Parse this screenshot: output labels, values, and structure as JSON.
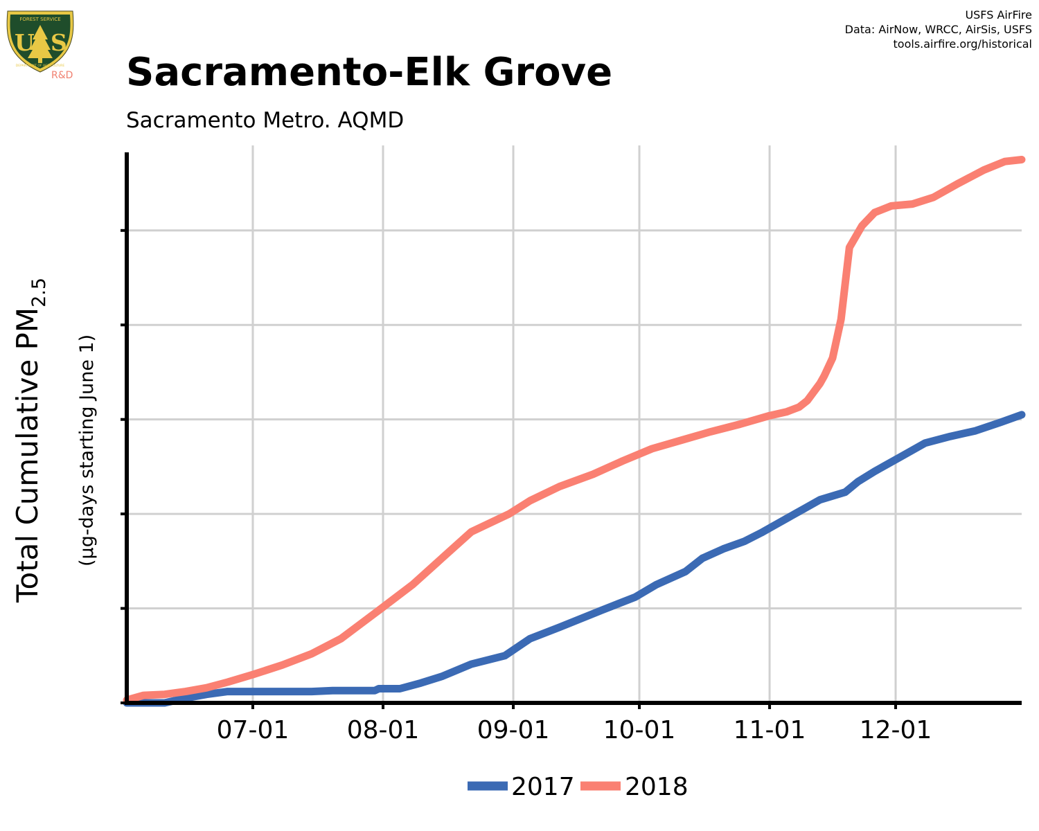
{
  "header": {
    "title": "Sacramento-Elk Grove",
    "subtitle": "Sacramento Metro. AQMD",
    "credits": [
      "USFS AirFire",
      "Data: AirNow, WRCC, AirSis, USFS",
      "tools.airfire.org/historical"
    ]
  },
  "logo": {
    "top_text": "FOREST SERVICE",
    "letters": "US",
    "bottom_text": "DEPARTMENT OF AGRICULTURE",
    "rd_text": "R&D",
    "colors": {
      "field": "#1f4d2b",
      "border": "#e8c845",
      "rd": "#f08070"
    }
  },
  "colors": {
    "s2017": "#3b6ab4",
    "s2018": "#fa8072",
    "grid": "#d0d0d0",
    "axis": "#000000"
  },
  "chart_data": {
    "type": "line",
    "title": "Sacramento-Elk Grove",
    "subtitle": "Sacramento Metro. AQMD",
    "ylabel_main": "Total Cumulative PM",
    "ylabel_sub": "2.5",
    "ylabel_units": "(µg-days starting June 1)",
    "xticks": [
      "07-01",
      "08-01",
      "09-01",
      "10-01",
      "11-01",
      "12-01"
    ],
    "xlim": [
      "06-01",
      "12-31"
    ],
    "ylim": [
      0,
      5.9
    ],
    "y_gridlines": [
      1,
      2,
      3,
      4,
      5
    ],
    "y_ticklabels_shown": false,
    "legend_position": "bottom-center",
    "series": [
      {
        "name": "2017",
        "color": "#3b6ab4",
        "points": [
          [
            "06-01",
            0.0
          ],
          [
            "06-10",
            0.0
          ],
          [
            "06-15",
            0.05
          ],
          [
            "06-20",
            0.09
          ],
          [
            "06-25",
            0.12
          ],
          [
            "07-15",
            0.12
          ],
          [
            "07-20",
            0.13
          ],
          [
            "07-30",
            0.13
          ],
          [
            "07-31",
            0.15
          ],
          [
            "08-05",
            0.15
          ],
          [
            "08-10",
            0.21
          ],
          [
            "08-15",
            0.28
          ],
          [
            "08-22",
            0.41
          ],
          [
            "08-30",
            0.5
          ],
          [
            "09-05",
            0.68
          ],
          [
            "09-12",
            0.8
          ],
          [
            "09-22",
            0.98
          ],
          [
            "09-30",
            1.12
          ],
          [
            "10-05",
            1.25
          ],
          [
            "10-12",
            1.39
          ],
          [
            "10-16",
            1.53
          ],
          [
            "10-21",
            1.63
          ],
          [
            "10-26",
            1.71
          ],
          [
            "10-30",
            1.8
          ],
          [
            "11-05",
            1.95
          ],
          [
            "11-09",
            2.05
          ],
          [
            "11-13",
            2.15
          ],
          [
            "11-19",
            2.23
          ],
          [
            "11-22",
            2.34
          ],
          [
            "11-26",
            2.45
          ],
          [
            "12-02",
            2.6
          ],
          [
            "12-08",
            2.75
          ],
          [
            "12-14",
            2.82
          ],
          [
            "12-20",
            2.88
          ],
          [
            "12-26",
            2.97
          ],
          [
            "12-31",
            3.05
          ]
        ]
      },
      {
        "name": "2018",
        "color": "#fa8072",
        "points": [
          [
            "06-01",
            0.03
          ],
          [
            "06-05",
            0.08
          ],
          [
            "06-10",
            0.09
          ],
          [
            "06-15",
            0.12
          ],
          [
            "06-20",
            0.16
          ],
          [
            "06-25",
            0.22
          ],
          [
            "07-01",
            0.3
          ],
          [
            "07-08",
            0.4
          ],
          [
            "07-15",
            0.52
          ],
          [
            "07-22",
            0.68
          ],
          [
            "07-31",
            0.98
          ],
          [
            "08-08",
            1.25
          ],
          [
            "08-15",
            1.53
          ],
          [
            "08-22",
            1.81
          ],
          [
            "08-31",
            2.0
          ],
          [
            "09-05",
            2.14
          ],
          [
            "09-12",
            2.29
          ],
          [
            "09-20",
            2.42
          ],
          [
            "09-27",
            2.56
          ],
          [
            "10-04",
            2.69
          ],
          [
            "10-11",
            2.78
          ],
          [
            "10-18",
            2.87
          ],
          [
            "10-25",
            2.95
          ],
          [
            "11-01",
            3.04
          ],
          [
            "11-05",
            3.08
          ],
          [
            "11-08",
            3.13
          ],
          [
            "11-10",
            3.2
          ],
          [
            "11-13",
            3.38
          ],
          [
            "11-14",
            3.46
          ],
          [
            "11-16",
            3.65
          ],
          [
            "11-18",
            4.06
          ],
          [
            "11-20",
            4.82
          ],
          [
            "11-23",
            5.05
          ],
          [
            "11-26",
            5.19
          ],
          [
            "11-30",
            5.26
          ],
          [
            "12-05",
            5.28
          ],
          [
            "12-10",
            5.35
          ],
          [
            "12-16",
            5.5
          ],
          [
            "12-22",
            5.64
          ],
          [
            "12-27",
            5.73
          ],
          [
            "12-31",
            5.75
          ]
        ]
      }
    ]
  }
}
